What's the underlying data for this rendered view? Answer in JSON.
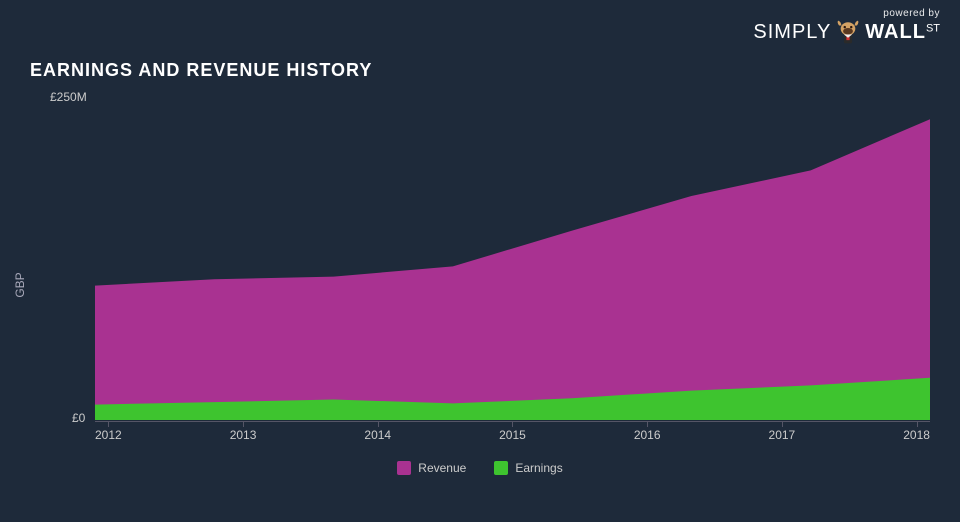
{
  "logo": {
    "powered": "powered by",
    "simply": "SIMPLY",
    "wall": "WALL",
    "st": "ST"
  },
  "title": "EARNINGS AND REVENUE HISTORY",
  "chart": {
    "type": "area",
    "y_axis_title": "GBP",
    "y_label_top": "£250M",
    "y_label_bottom": "£0",
    "ylim": [
      0,
      250
    ],
    "x_labels": [
      "2012",
      "2013",
      "2014",
      "2015",
      "2016",
      "2017",
      "2018"
    ],
    "series": [
      {
        "name": "Revenue",
        "color": "#a93291",
        "values": [
          105,
          110,
          112,
          120,
          148,
          175,
          195,
          235
        ]
      },
      {
        "name": "Earnings",
        "color": "#3ec42f",
        "values": [
          12,
          14,
          16,
          13,
          17,
          23,
          27,
          33
        ]
      }
    ],
    "background_color": "#1e2a3a",
    "axis_color": "#556677",
    "text_color": "#cccccc",
    "title_fontsize": 18,
    "label_fontsize": 12
  }
}
